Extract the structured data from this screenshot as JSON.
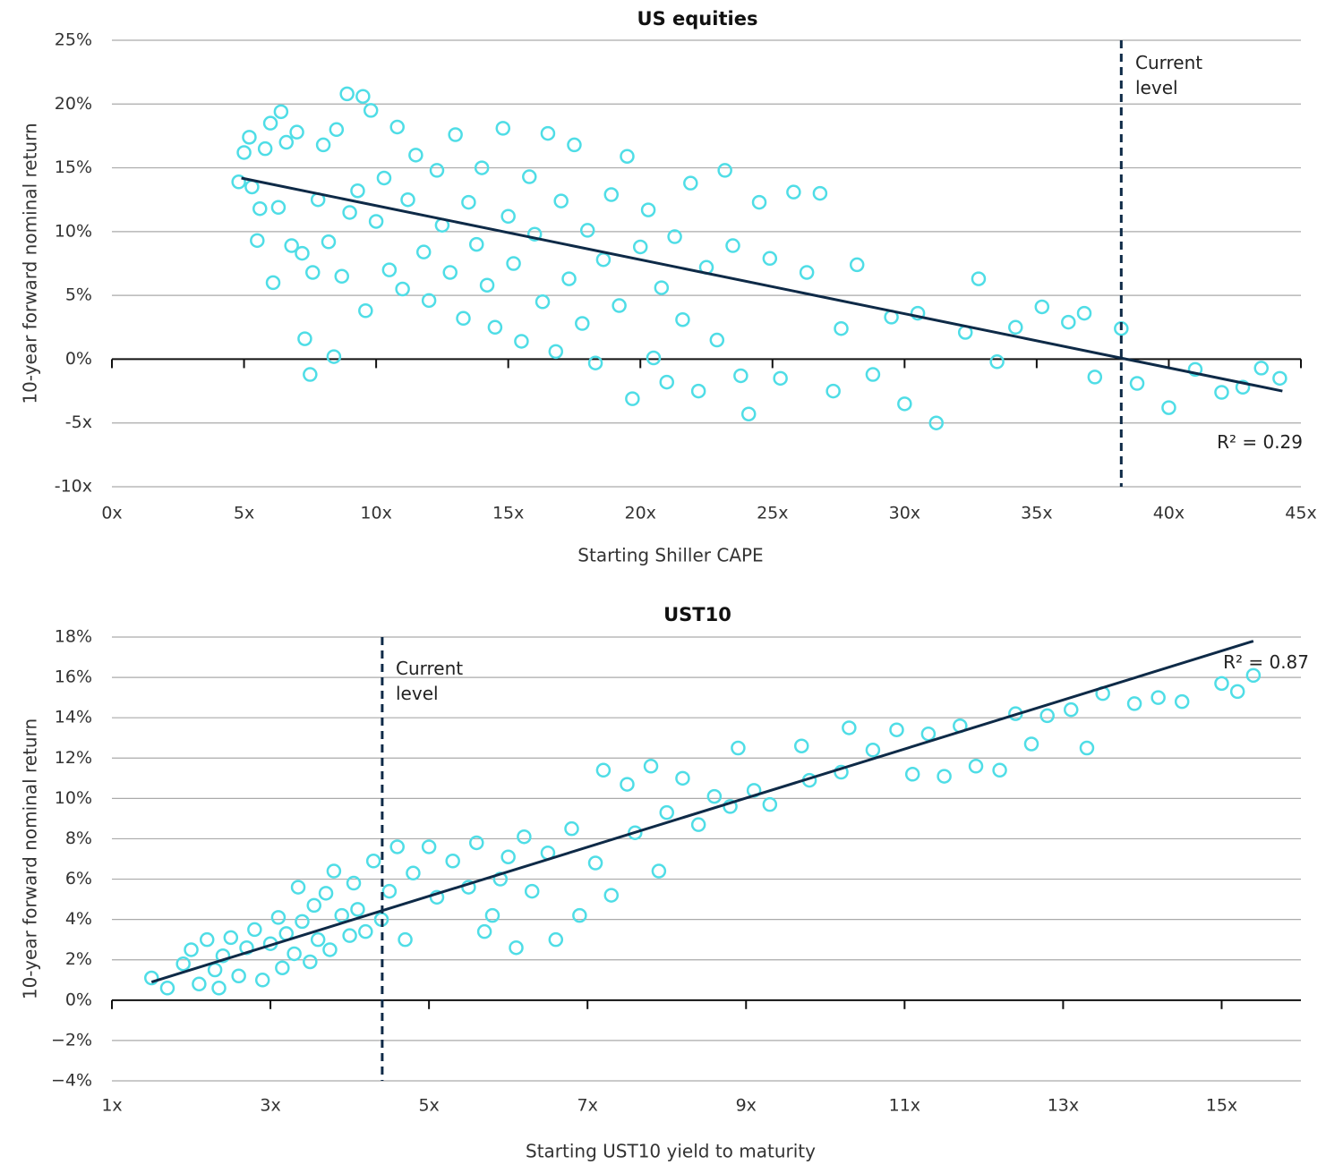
{
  "chart_data": [
    {
      "type": "scatter",
      "title": "US equities",
      "x_label": "Starting Shiller CAPE",
      "y_label": "10-year forward nominal return",
      "color": "#4fdde6",
      "trend_color": "#0e2a47",
      "grid": true,
      "xlim": [
        0,
        45
      ],
      "ylim": [
        -10,
        25
      ],
      "xticks": [
        {
          "value": 0,
          "label": "0x"
        },
        {
          "value": 5,
          "label": "5x"
        },
        {
          "value": 10,
          "label": "10x"
        },
        {
          "value": 15,
          "label": "15x"
        },
        {
          "value": 20,
          "label": "20x"
        },
        {
          "value": 25,
          "label": "25x"
        },
        {
          "value": 30,
          "label": "30x"
        },
        {
          "value": 35,
          "label": "35x"
        },
        {
          "value": 40,
          "label": "40x"
        },
        {
          "value": 45,
          "label": "45x"
        }
      ],
      "yticks": [
        {
          "value": -10,
          "label": "-10x"
        },
        {
          "value": -5,
          "label": "-5x"
        },
        {
          "value": 0,
          "label": "0%"
        },
        {
          "value": 5,
          "label": "5%"
        },
        {
          "value": 10,
          "label": "10%"
        },
        {
          "value": 15,
          "label": "15%"
        },
        {
          "value": 20,
          "label": "20%"
        },
        {
          "value": 25,
          "label": "25%"
        }
      ],
      "x": [
        4.8,
        5,
        5.2,
        5.3,
        5.5,
        5.6,
        5.8,
        6,
        6.1,
        6.3,
        6.4,
        6.6,
        6.8,
        7,
        7.2,
        7.3,
        7.5,
        7.6,
        7.8,
        8,
        8.2,
        8.4,
        8.5,
        8.7,
        8.9,
        9,
        9.3,
        9.5,
        9.6,
        9.8,
        10,
        10.3,
        10.5,
        10.8,
        11,
        11.2,
        11.5,
        11.8,
        12,
        12.3,
        12.5,
        12.8,
        13,
        13.3,
        13.5,
        13.8,
        14,
        14.2,
        14.5,
        14.8,
        15,
        15.2,
        15.5,
        15.8,
        16,
        16.3,
        16.5,
        16.8,
        17,
        17.3,
        17.5,
        17.8,
        18,
        18.3,
        18.6,
        18.9,
        19.2,
        19.5,
        19.7,
        20,
        20.3,
        20.5,
        20.8,
        21,
        21.3,
        21.6,
        21.9,
        22.2,
        22.5,
        22.9,
        23.2,
        23.5,
        23.8,
        24.1,
        24.5,
        24.9,
        25.3,
        25.8,
        26.3,
        26.8,
        27.3,
        27.6,
        28.2,
        28.8,
        29.5,
        30,
        30.5,
        31.2,
        32.3,
        32.8,
        33.5,
        34.2,
        35.2,
        36.2,
        36.8,
        37.2,
        38.2,
        38.8,
        40,
        41,
        42,
        42.8,
        43.5,
        44.2
      ],
      "values": [
        13.9,
        16.2,
        17.4,
        13.5,
        9.3,
        11.8,
        16.5,
        18.5,
        6,
        11.9,
        19.4,
        17,
        8.9,
        17.8,
        8.3,
        1.6,
        -1.2,
        6.8,
        12.5,
        16.8,
        9.2,
        0.2,
        18,
        6.5,
        20.8,
        11.5,
        13.2,
        20.6,
        3.8,
        19.5,
        10.8,
        14.2,
        7,
        18.2,
        5.5,
        12.5,
        16,
        8.4,
        4.6,
        14.8,
        10.5,
        6.8,
        17.6,
        3.2,
        12.3,
        9,
        15,
        5.8,
        2.5,
        18.1,
        11.2,
        7.5,
        1.4,
        14.3,
        9.8,
        4.5,
        17.7,
        0.6,
        12.4,
        6.3,
        16.8,
        2.8,
        10.1,
        -0.3,
        7.8,
        12.9,
        4.2,
        15.9,
        -3.1,
        8.8,
        11.7,
        0.1,
        5.6,
        -1.8,
        9.6,
        3.1,
        13.8,
        -2.5,
        7.2,
        1.5,
        14.8,
        8.9,
        -1.3,
        -4.3,
        12.3,
        7.9,
        -1.5,
        13.1,
        6.8,
        13,
        -2.5,
        2.4,
        7.4,
        -1.2,
        3.3,
        -3.5,
        3.6,
        -5,
        2.1,
        6.3,
        -0.2,
        2.5,
        4.1,
        2.9,
        3.6,
        -1.4,
        2.4,
        -1.9,
        -3.8,
        -0.8,
        -2.6,
        -2.2,
        -0.7,
        -1.5
      ],
      "trend_x": [
        4.9,
        44.3
      ],
      "trend_y": [
        14.2,
        -2.5
      ],
      "current_level": {
        "x": 38.2,
        "label": "Current\nlevel"
      },
      "r_squared_label": "R² = 0.29"
    },
    {
      "type": "scatter",
      "title": "UST10",
      "x_label": "Starting UST10 yield to maturity",
      "y_label": "10-year forward nominal return",
      "color": "#4fdde6",
      "trend_color": "#0e2a47",
      "grid": true,
      "xlim": [
        1,
        16
      ],
      "ylim": [
        -4,
        18
      ],
      "xticks": [
        {
          "value": 1,
          "label": "1x"
        },
        {
          "value": 3,
          "label": "3x"
        },
        {
          "value": 5,
          "label": "5x"
        },
        {
          "value": 7,
          "label": "7x"
        },
        {
          "value": 9,
          "label": "9x"
        },
        {
          "value": 11,
          "label": "11x"
        },
        {
          "value": 13,
          "label": "13x"
        },
        {
          "value": 15,
          "label": "15x"
        }
      ],
      "yticks": [
        {
          "value": -4,
          "label": "−4%"
        },
        {
          "value": -2,
          "label": "−2%"
        },
        {
          "value": 0,
          "label": "0%"
        },
        {
          "value": 2,
          "label": "2%"
        },
        {
          "value": 4,
          "label": "4%"
        },
        {
          "value": 6,
          "label": "6%"
        },
        {
          "value": 8,
          "label": "8%"
        },
        {
          "value": 10,
          "label": "10%"
        },
        {
          "value": 12,
          "label": "12%"
        },
        {
          "value": 14,
          "label": "14%"
        },
        {
          "value": 16,
          "label": "16%"
        },
        {
          "value": 18,
          "label": "18%"
        }
      ],
      "x": [
        1.5,
        1.7,
        1.9,
        2,
        2.1,
        2.2,
        2.3,
        2.35,
        2.4,
        2.5,
        2.6,
        2.7,
        2.8,
        2.9,
        3,
        3.1,
        3.15,
        3.2,
        3.3,
        3.35,
        3.4,
        3.5,
        3.55,
        3.6,
        3.7,
        3.75,
        3.8,
        3.9,
        4,
        4.05,
        4.1,
        4.2,
        4.3,
        4.4,
        4.5,
        4.6,
        4.7,
        4.8,
        5,
        5.1,
        5.3,
        5.5,
        5.6,
        5.7,
        5.8,
        5.9,
        6,
        6.1,
        6.2,
        6.3,
        6.5,
        6.6,
        6.8,
        6.9,
        7.1,
        7.2,
        7.3,
        7.5,
        7.6,
        7.8,
        7.9,
        8,
        8.2,
        8.4,
        8.6,
        8.8,
        8.9,
        9.1,
        9.3,
        9.7,
        9.8,
        10.2,
        10.3,
        10.6,
        10.9,
        11.1,
        11.3,
        11.5,
        11.7,
        11.9,
        12.2,
        12.4,
        12.6,
        12.8,
        13.1,
        13.3,
        13.5,
        13.9,
        14.2,
        14.5,
        15,
        15.2,
        15.4
      ],
      "values": [
        1.1,
        0.6,
        1.8,
        2.5,
        0.8,
        3,
        1.5,
        0.6,
        2.2,
        3.1,
        1.2,
        2.6,
        3.5,
        1,
        2.8,
        4.1,
        1.6,
        3.3,
        2.3,
        5.6,
        3.9,
        1.9,
        4.7,
        3,
        5.3,
        2.5,
        6.4,
        4.2,
        3.2,
        5.8,
        4.5,
        3.4,
        6.9,
        4,
        5.4,
        7.6,
        3,
        6.3,
        7.6,
        5.1,
        6.9,
        5.6,
        7.8,
        3.4,
        4.2,
        6,
        7.1,
        2.6,
        8.1,
        5.4,
        7.3,
        3,
        8.5,
        4.2,
        6.8,
        11.4,
        5.2,
        10.7,
        8.3,
        11.6,
        6.4,
        9.3,
        11,
        8.7,
        10.1,
        9.6,
        12.5,
        10.4,
        9.7,
        12.6,
        10.9,
        11.3,
        13.5,
        12.4,
        13.4,
        11.2,
        13.2,
        11.1,
        13.6,
        11.6,
        11.4,
        14.2,
        12.7,
        14.1,
        14.4,
        12.5,
        15.2,
        14.7,
        15,
        14.8,
        15.7,
        15.3,
        16.1
      ],
      "trend_x": [
        1.5,
        15.4
      ],
      "trend_y": [
        0.9,
        17.8
      ],
      "current_level": {
        "x": 4.41,
        "label": "Current\nlevel"
      },
      "r_squared_label": "R² = 0.87"
    }
  ]
}
